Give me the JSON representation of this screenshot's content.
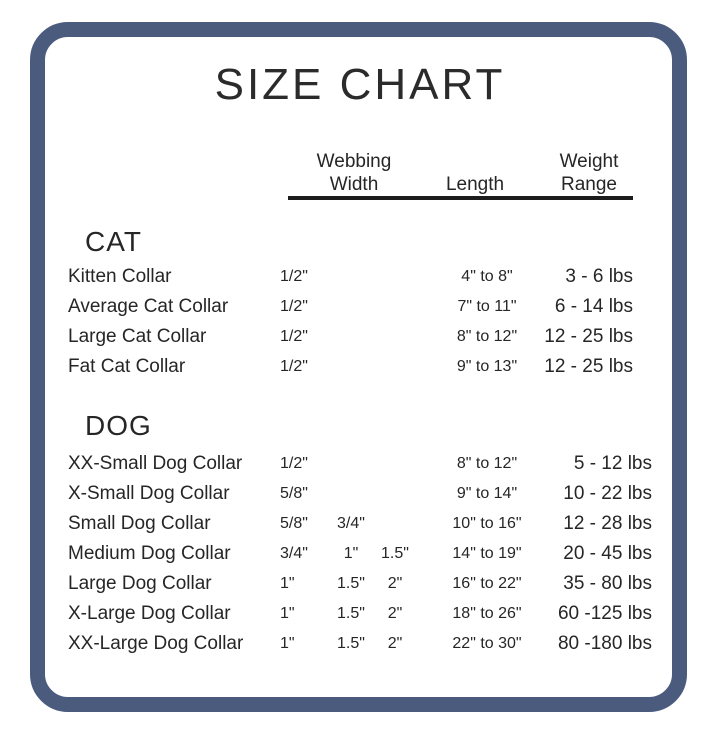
{
  "title": "SIZE CHART",
  "headers": {
    "webbing": "Webbing Width",
    "length": "Length",
    "weight": "Weight Range"
  },
  "sections": [
    {
      "name": "CAT",
      "rows": [
        {
          "label": "Kitten Collar",
          "w1": "1/2\"",
          "w2": "",
          "w3": "",
          "length": "4\" to 8\"",
          "weight": "3 - 6 lbs"
        },
        {
          "label": "Average Cat Collar",
          "w1": "1/2\"",
          "w2": "",
          "w3": "",
          "length": "7\" to 11\"",
          "weight": "6 - 14 lbs"
        },
        {
          "label": "Large Cat Collar",
          "w1": "1/2\"",
          "w2": "",
          "w3": "",
          "length": "8\" to 12\"",
          "weight": "12 - 25 lbs"
        },
        {
          "label": "Fat Cat Collar",
          "w1": "1/2\"",
          "w2": "",
          "w3": "",
          "length": "9\" to 13\"",
          "weight": "12 - 25 lbs"
        }
      ]
    },
    {
      "name": "DOG",
      "rows": [
        {
          "label": "XX-Small Dog Collar",
          "w1": "1/2\"",
          "w2": "",
          "w3": "",
          "length": "8\" to 12\"",
          "weight": "5 - 12 lbs"
        },
        {
          "label": "X-Small Dog Collar",
          "w1": "5/8\"",
          "w2": "",
          "w3": "",
          "length": "9\" to 14\"",
          "weight": "10 - 22 lbs"
        },
        {
          "label": "Small Dog Collar",
          "w1": "5/8\"",
          "w2": "3/4\"",
          "w3": "",
          "length": "10\" to 16\"",
          "weight": "12 - 28 lbs"
        },
        {
          "label": "Medium Dog Collar",
          "w1": "3/4\"",
          "w2": "1\"",
          "w3": "1.5\"",
          "length": "14\" to 19\"",
          "weight": "20 - 45 lbs"
        },
        {
          "label": "Large Dog Collar",
          "w1": "1\"",
          "w2": "1.5\"",
          "w3": "2\"",
          "length": "16\" to 22\"",
          "weight": "35 - 80 lbs"
        },
        {
          "label": "X-Large Dog Collar",
          "w1": "1\"",
          "w2": "1.5\"",
          "w3": "2\"",
          "length": "18\" to 26\"",
          "weight": "60 -125 lbs"
        },
        {
          "label": "XX-Large Dog Collar",
          "w1": "1\"",
          "w2": "1.5\"",
          "w3": "2\"",
          "length": "22\" to 30\"",
          "weight": "80 -180 lbs"
        }
      ]
    }
  ],
  "colors": {
    "border": "#4a5b7e",
    "text": "#262626",
    "rule": "#1c1c1c",
    "background": "#ffffff"
  }
}
